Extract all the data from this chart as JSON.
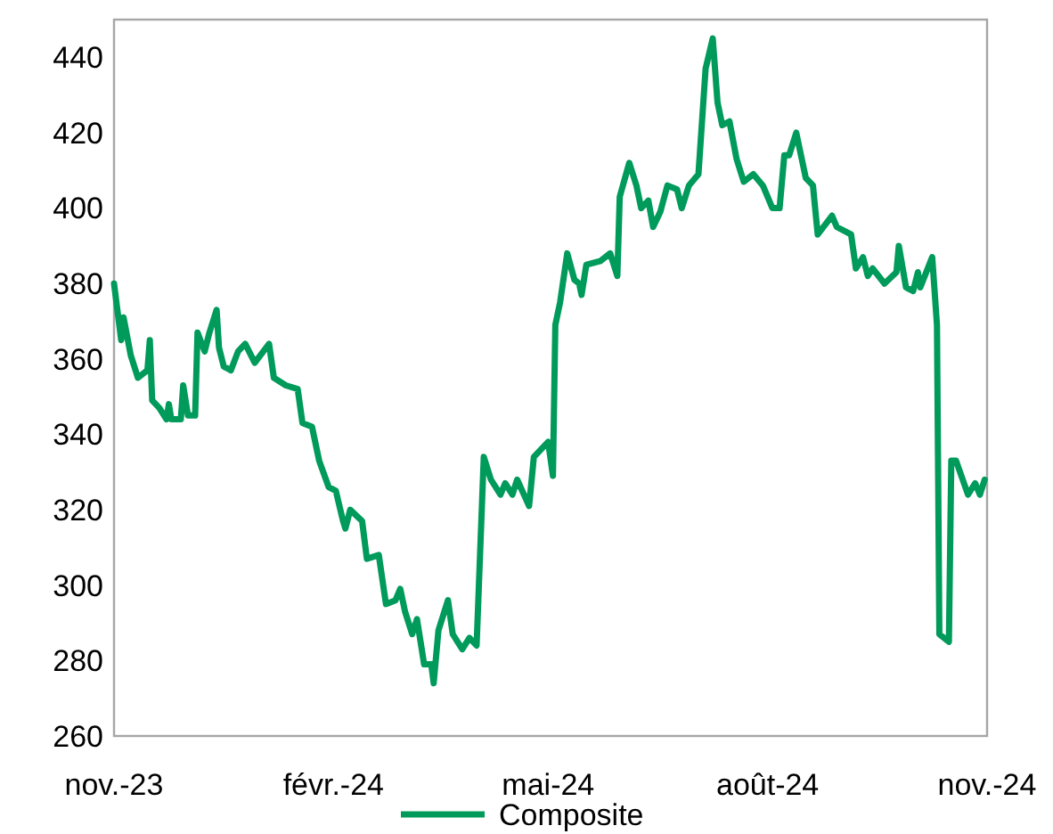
{
  "chart_data": {
    "type": "line",
    "xlim": [
      "2023-11-01",
      "2024-11-01"
    ],
    "xticks": [
      {
        "value": "2023-11-01",
        "label": "nov.-23"
      },
      {
        "value": "2024-02-01",
        "label": "févr.-24"
      },
      {
        "value": "2024-05-01",
        "label": "mai-24"
      },
      {
        "value": "2024-08-01",
        "label": "août-24"
      },
      {
        "value": "2024-11-01",
        "label": "nov.-24"
      }
    ],
    "ylim": [
      260,
      450
    ],
    "yticks": [
      260,
      280,
      300,
      320,
      340,
      360,
      380,
      400,
      420,
      440
    ],
    "grid": false,
    "legend": "bottom",
    "marker": "none",
    "line_style": "solid",
    "x": [
      "2023-11-01",
      "2023-11-04",
      "2023-11-05",
      "2023-11-08",
      "2023-11-11",
      "2023-11-15",
      "2023-11-16",
      "2023-11-17",
      "2023-11-20",
      "2023-11-23",
      "2023-11-24",
      "2023-11-25",
      "2023-11-29",
      "2023-11-30",
      "2023-12-02",
      "2023-12-05",
      "2023-12-06",
      "2023-12-09",
      "2023-12-11",
      "2023-12-14",
      "2023-12-15",
      "2023-12-17",
      "2023-12-20",
      "2023-12-23",
      "2023-12-26",
      "2023-12-30",
      "2024-01-05",
      "2024-01-07",
      "2024-01-12",
      "2024-01-17",
      "2024-01-19",
      "2024-01-23",
      "2024-01-26",
      "2024-01-30",
      "2024-02-02",
      "2024-02-05",
      "2024-02-06",
      "2024-02-08",
      "2024-02-13",
      "2024-02-15",
      "2024-02-20",
      "2024-02-23",
      "2024-02-27",
      "2024-02-29",
      "2024-03-02",
      "2024-03-05",
      "2024-03-07",
      "2024-03-10",
      "2024-03-13",
      "2024-03-14",
      "2024-03-16",
      "2024-03-20",
      "2024-03-22",
      "2024-03-26",
      "2024-03-29",
      "2024-04-01",
      "2024-04-04",
      "2024-04-07",
      "2024-04-11",
      "2024-04-13",
      "2024-04-16",
      "2024-04-18",
      "2024-04-23",
      "2024-04-25",
      "2024-04-28",
      "2024-05-01",
      "2024-05-03",
      "2024-05-04",
      "2024-05-06",
      "2024-05-09",
      "2024-05-12",
      "2024-05-14",
      "2024-05-15",
      "2024-05-17",
      "2024-05-23",
      "2024-05-27",
      "2024-05-30",
      "2024-05-31",
      "2024-06-04",
      "2024-06-07",
      "2024-06-09",
      "2024-06-12",
      "2024-06-14",
      "2024-06-17",
      "2024-06-20",
      "2024-06-24",
      "2024-06-26",
      "2024-06-29",
      "2024-07-03",
      "2024-07-06",
      "2024-07-09",
      "2024-07-11",
      "2024-07-13",
      "2024-07-16",
      "2024-07-19",
      "2024-07-22",
      "2024-07-26",
      "2024-07-30",
      "2024-08-03",
      "2024-08-06",
      "2024-08-08",
      "2024-08-10",
      "2024-08-13",
      "2024-08-17",
      "2024-08-20",
      "2024-08-22",
      "2024-08-28",
      "2024-08-30",
      "2024-09-05",
      "2024-09-07",
      "2024-09-10",
      "2024-09-12",
      "2024-09-14",
      "2024-09-19",
      "2024-09-24",
      "2024-09-25",
      "2024-09-28",
      "2024-10-01",
      "2024-10-03",
      "2024-10-04",
      "2024-10-09",
      "2024-10-11",
      "2024-10-12",
      "2024-10-16",
      "2024-10-17",
      "2024-10-19",
      "2024-10-24",
      "2024-10-27",
      "2024-10-29",
      "2024-10-31"
    ],
    "series": [
      {
        "name": "Composite",
        "color": "#009a5b",
        "values": [
          380,
          365,
          371,
          361,
          355,
          357,
          365,
          349,
          347,
          344,
          348,
          344,
          344,
          353,
          345,
          345,
          367,
          362,
          367,
          373,
          363,
          358,
          357,
          362,
          364,
          359,
          364,
          355,
          353,
          352,
          343,
          342,
          333,
          326,
          325,
          317,
          315,
          320,
          317,
          307,
          308,
          295,
          296,
          299,
          293,
          287,
          291,
          279,
          279,
          274,
          288,
          296,
          287,
          283,
          286,
          284,
          334,
          328,
          324,
          327,
          324,
          328,
          321,
          334,
          336,
          338,
          329,
          369,
          375,
          388,
          381,
          380,
          377,
          385,
          386,
          388,
          382,
          403,
          412,
          406,
          400,
          402,
          395,
          399,
          406,
          405,
          400,
          406,
          409,
          437,
          445,
          428,
          422,
          423,
          413,
          407,
          409,
          406,
          400,
          400,
          414,
          414,
          420,
          408,
          406,
          393,
          398,
          395,
          393,
          384,
          387,
          382,
          384,
          380,
          383,
          390,
          379,
          378,
          383,
          379,
          387,
          369,
          287,
          285,
          333,
          333,
          324,
          327,
          324,
          328
        ]
      }
    ]
  }
}
